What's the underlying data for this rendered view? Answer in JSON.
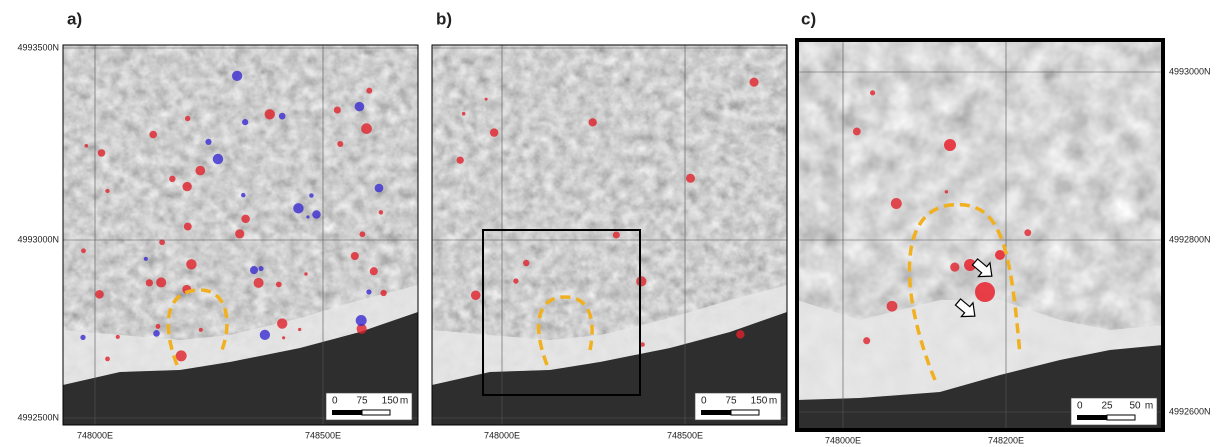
{
  "panels": [
    {
      "label": "a)",
      "y_labels": [
        "4993500N",
        "4993000N",
        "4992500N"
      ],
      "x_labels": [
        "748000E",
        "748500E"
      ],
      "scale": {
        "ticks": [
          "0",
          "75",
          "150"
        ],
        "unit": "m"
      }
    },
    {
      "label": "b)",
      "x_labels": [
        "748000E",
        "748500E"
      ],
      "scale": {
        "ticks": [
          "0",
          "75",
          "150"
        ],
        "unit": "m"
      }
    },
    {
      "label": "c)",
      "y_labels": [
        "4993000N",
        "4992800N",
        "4992600N"
      ],
      "x_labels": [
        "748000E",
        "748200E"
      ],
      "scale": {
        "ticks": [
          "0",
          "25",
          "50"
        ],
        "unit": "m"
      }
    }
  ]
}
